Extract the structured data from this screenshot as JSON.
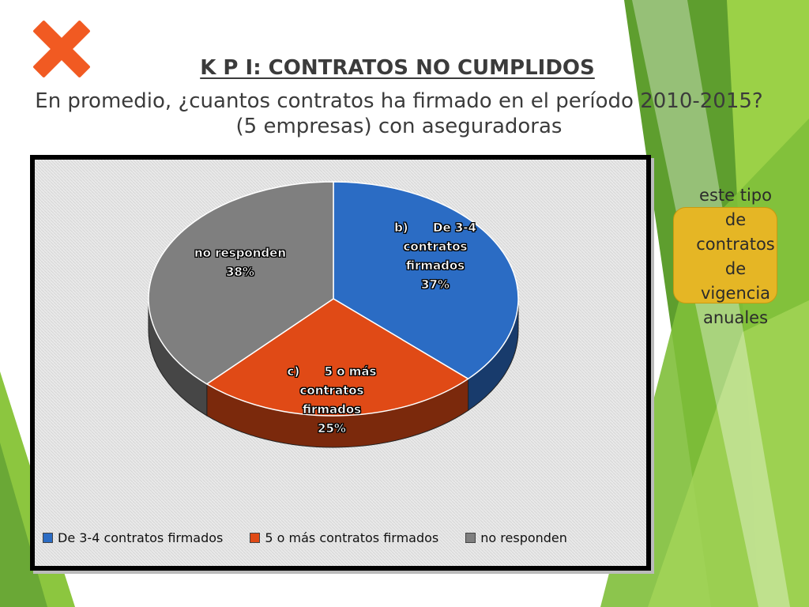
{
  "slide": {
    "title": "K P I: CONTRATOS NO CUMPLIDOS",
    "subtitle": "En promedio, ¿cuantos contratos ha firmado en el período 2010-2015?(5 empresas) con aseguradoras",
    "mark_icon": "x-icon",
    "note": {
      "line1": "este tipo",
      "line2": "de",
      "line3": "contratos",
      "line4": "de",
      "line5": "vigencia",
      "line6": "anuales"
    }
  },
  "colors": {
    "x_mark": "#f15a22",
    "green_dark": "#5e9e2e",
    "green_light": "#9bd147",
    "note_fill": "#e5b625"
  },
  "chart_data": {
    "type": "pie",
    "title": "",
    "style": "3d",
    "legend_position": "bottom",
    "slices": [
      {
        "name": "De 3-4 contratos firmados",
        "value": 37,
        "color": "#2b6cc4",
        "label_line1": "b)      De 3-4",
        "label_line2": "contratos",
        "label_line3": "firmados",
        "label_pct": "37%"
      },
      {
        "name": "5 o más contratos firmados",
        "value": 25,
        "color": "#e04a16",
        "label_line1": "c)      5 o más",
        "label_line2": "contratos",
        "label_line3": "firmados",
        "label_pct": "25%"
      },
      {
        "name": "no responden",
        "value": 38,
        "color": "#7f7f7f",
        "label_line1": "no responden",
        "label_pct": "38%"
      }
    ]
  }
}
